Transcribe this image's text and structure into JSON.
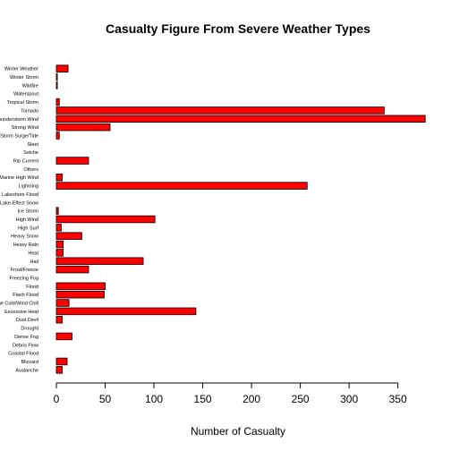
{
  "chart_data": {
    "type": "bar",
    "orientation": "horizontal",
    "title": "Casualty Figure From Severe Weather Types",
    "xlabel": "Number of Casualty",
    "ylabel": "",
    "xlim": [
      0,
      376
    ],
    "xticks": [
      "0",
      "50",
      "100",
      "150",
      "200",
      "250",
      "300",
      "350"
    ],
    "grid": false,
    "bar_color": "#ff0000",
    "categories": [
      "Avalanche",
      "Blizzard",
      "Coastal Flood",
      "Debris Flow",
      "Dense Fog",
      "Drought",
      "Dust Devil",
      "Excessive Heat",
      "Extreme Cold/Wind Chill",
      "Flash Flood",
      "Flood",
      "Freezing Fog",
      "Frost/Freeze",
      "Hail",
      "Heat",
      "Heavy Rain",
      "Heavy Snow",
      "High Surf",
      "High Wind",
      "Ice Storm",
      "Lake-Effect Snow",
      "Lakeshore Flood",
      "Lightning",
      "Marine High Wind",
      "Others",
      "Rip Current",
      "Seiche",
      "Sleet",
      "Storm Surge/Tide",
      "Strong Wind",
      "Thunderstorm Wind",
      "Tornado",
      "Tropical Storm",
      "Waterspout",
      "Wildfire",
      "Winter Storm",
      "Winter Weather"
    ],
    "values": [
      6,
      11,
      0,
      0,
      16,
      0,
      6,
      143,
      13,
      49,
      50,
      0,
      33,
      89,
      7,
      7,
      26,
      5,
      101,
      2,
      0,
      0,
      257,
      6,
      0,
      33,
      0,
      0,
      3,
      55,
      378,
      336,
      3,
      0,
      1,
      1,
      12
    ]
  }
}
